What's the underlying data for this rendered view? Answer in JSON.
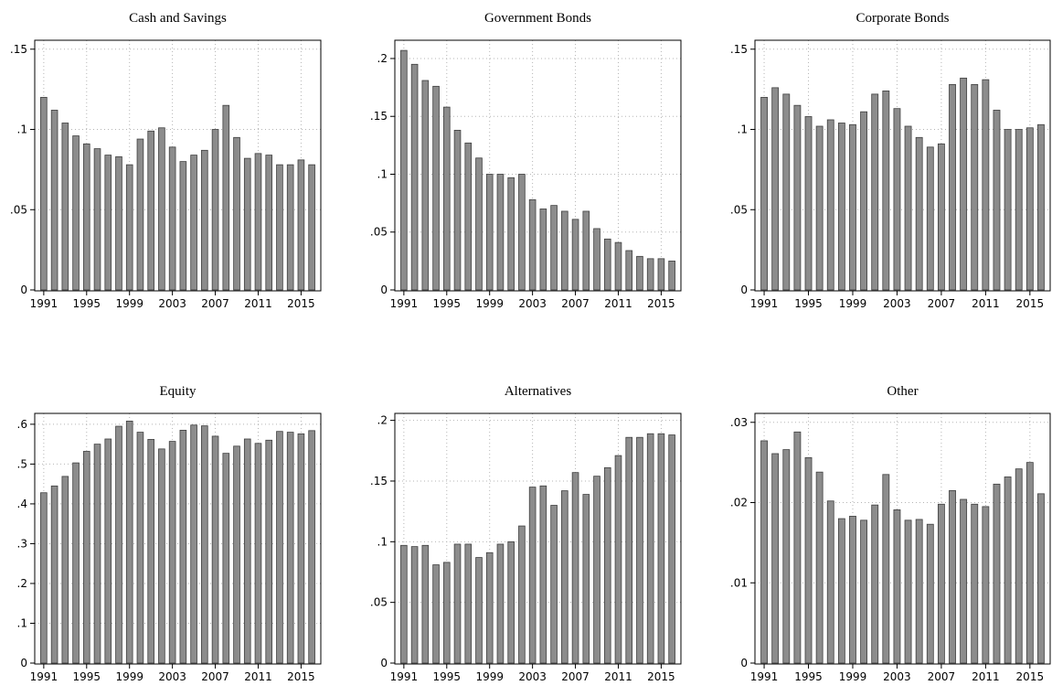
{
  "chart_data": [
    {
      "type": "bar",
      "title": "Cash and Savings",
      "x": [
        1991,
        1992,
        1993,
        1994,
        1995,
        1996,
        1997,
        1998,
        1999,
        2000,
        2001,
        2002,
        2003,
        2004,
        2005,
        2006,
        2007,
        2008,
        2009,
        2010,
        2011,
        2012,
        2013,
        2014,
        2015,
        2016
      ],
      "values": [
        0.12,
        0.112,
        0.104,
        0.096,
        0.091,
        0.088,
        0.084,
        0.083,
        0.078,
        0.094,
        0.099,
        0.101,
        0.089,
        0.08,
        0.084,
        0.087,
        0.1,
        0.115,
        0.095,
        0.082,
        0.085,
        0.084,
        0.078,
        0.078,
        0.081,
        0.078
      ],
      "ylim": [
        0,
        0.155
      ],
      "yticks": [
        0,
        0.05,
        0.1,
        0.15
      ],
      "ytick_labels": [
        "0",
        ".05",
        ".1",
        ".15"
      ],
      "xticks": [
        1991,
        1995,
        1999,
        2003,
        2007,
        2011,
        2015
      ],
      "xtick_labels": [
        "1991",
        "1995",
        "1999",
        "2003",
        "2007",
        "2011",
        "2015"
      ],
      "grid": true
    },
    {
      "type": "bar",
      "title": "Government Bonds",
      "x": [
        1991,
        1992,
        1993,
        1994,
        1995,
        1996,
        1997,
        1998,
        1999,
        2000,
        2001,
        2002,
        2003,
        2004,
        2005,
        2006,
        2007,
        2008,
        2009,
        2010,
        2011,
        2012,
        2013,
        2014,
        2015,
        2016
      ],
      "values": [
        0.207,
        0.195,
        0.181,
        0.176,
        0.158,
        0.138,
        0.127,
        0.114,
        0.1,
        0.1,
        0.097,
        0.1,
        0.078,
        0.07,
        0.073,
        0.068,
        0.061,
        0.068,
        0.053,
        0.044,
        0.041,
        0.034,
        0.029,
        0.027,
        0.027,
        0.025
      ],
      "ylim": [
        0,
        0.215
      ],
      "yticks": [
        0,
        0.05,
        0.1,
        0.15,
        0.2
      ],
      "ytick_labels": [
        "0",
        ".05",
        ".1",
        ".15",
        ".2"
      ],
      "xticks": [
        1991,
        1995,
        1999,
        2003,
        2007,
        2011,
        2015
      ],
      "xtick_labels": [
        "1991",
        "1995",
        "1999",
        "2003",
        "2007",
        "2011",
        "2015"
      ],
      "grid": true
    },
    {
      "type": "bar",
      "title": "Corporate Bonds",
      "x": [
        1991,
        1992,
        1993,
        1994,
        1995,
        1996,
        1997,
        1998,
        1999,
        2000,
        2001,
        2002,
        2003,
        2004,
        2005,
        2006,
        2007,
        2008,
        2009,
        2010,
        2011,
        2012,
        2013,
        2014,
        2015,
        2016
      ],
      "values": [
        0.12,
        0.126,
        0.122,
        0.115,
        0.108,
        0.102,
        0.106,
        0.104,
        0.103,
        0.111,
        0.122,
        0.124,
        0.113,
        0.102,
        0.095,
        0.089,
        0.091,
        0.128,
        0.132,
        0.128,
        0.131,
        0.112,
        0.1,
        0.1,
        0.101,
        0.103
      ],
      "ylim": [
        0,
        0.155
      ],
      "yticks": [
        0,
        0.05,
        0.1,
        0.15
      ],
      "ytick_labels": [
        "0",
        ".05",
        ".1",
        ".15"
      ],
      "xticks": [
        1991,
        1995,
        1999,
        2003,
        2007,
        2011,
        2015
      ],
      "xtick_labels": [
        "1991",
        "1995",
        "1999",
        "2003",
        "2007",
        "2011",
        "2015"
      ],
      "grid": true
    },
    {
      "type": "bar",
      "title": "Equity",
      "x": [
        1991,
        1992,
        1993,
        1994,
        1995,
        1996,
        1997,
        1998,
        1999,
        2000,
        2001,
        2002,
        2003,
        2004,
        2005,
        2006,
        2007,
        2008,
        2009,
        2010,
        2011,
        2012,
        2013,
        2014,
        2015,
        2016
      ],
      "values": [
        0.428,
        0.445,
        0.469,
        0.503,
        0.532,
        0.55,
        0.563,
        0.595,
        0.608,
        0.58,
        0.562,
        0.538,
        0.557,
        0.585,
        0.598,
        0.596,
        0.57,
        0.527,
        0.545,
        0.563,
        0.552,
        0.56,
        0.582,
        0.58,
        0.576,
        0.584
      ],
      "ylim": [
        0,
        0.625
      ],
      "yticks": [
        0,
        0.1,
        0.2,
        0.3,
        0.4,
        0.5,
        0.6
      ],
      "ytick_labels": [
        "0",
        ".1",
        ".2",
        ".3",
        ".4",
        ".5",
        ".6"
      ],
      "xticks": [
        1991,
        1995,
        1999,
        2003,
        2007,
        2011,
        2015
      ],
      "xtick_labels": [
        "1991",
        "1995",
        "1999",
        "2003",
        "2007",
        "2011",
        "2015"
      ],
      "grid": true
    },
    {
      "type": "bar",
      "title": "Alternatives",
      "x": [
        1991,
        1992,
        1993,
        1994,
        1995,
        1996,
        1997,
        1998,
        1999,
        2000,
        2001,
        2002,
        2003,
        2004,
        2005,
        2006,
        2007,
        2008,
        2009,
        2010,
        2011,
        2012,
        2013,
        2014,
        2015,
        2016
      ],
      "values": [
        0.097,
        0.096,
        0.097,
        0.081,
        0.083,
        0.098,
        0.098,
        0.087,
        0.091,
        0.098,
        0.1,
        0.113,
        0.145,
        0.146,
        0.13,
        0.142,
        0.157,
        0.139,
        0.154,
        0.161,
        0.171,
        0.186,
        0.186,
        0.189,
        0.189,
        0.188
      ],
      "ylim": [
        0,
        0.205
      ],
      "yticks": [
        0,
        0.05,
        0.1,
        0.15,
        0.2
      ],
      "ytick_labels": [
        "0",
        ".05",
        ".1",
        ".15",
        ".2"
      ],
      "xticks": [
        1991,
        1995,
        1999,
        2003,
        2007,
        2011,
        2015
      ],
      "xtick_labels": [
        "1991",
        "1995",
        "1999",
        "2003",
        "2007",
        "2011",
        "2015"
      ],
      "grid": true
    },
    {
      "type": "bar",
      "title": "Other",
      "x": [
        1991,
        1992,
        1993,
        1994,
        1995,
        1996,
        1997,
        1998,
        1999,
        2000,
        2001,
        2002,
        2003,
        2004,
        2005,
        2006,
        2007,
        2008,
        2009,
        2010,
        2011,
        2012,
        2013,
        2014,
        2015,
        2016
      ],
      "values": [
        0.0277,
        0.0261,
        0.0266,
        0.0288,
        0.0256,
        0.0238,
        0.0202,
        0.018,
        0.0183,
        0.0178,
        0.0197,
        0.0235,
        0.0191,
        0.0178,
        0.0179,
        0.0173,
        0.0198,
        0.0215,
        0.0204,
        0.0198,
        0.0195,
        0.0223,
        0.0232,
        0.0242,
        0.025,
        0.0211
      ],
      "ylim": [
        0,
        0.031
      ],
      "yticks": [
        0,
        0.01,
        0.02,
        0.03
      ],
      "ytick_labels": [
        "0",
        ".01",
        ".02",
        ".03"
      ],
      "xticks": [
        1991,
        1995,
        1999,
        2003,
        2007,
        2011,
        2015
      ],
      "xtick_labels": [
        "1991",
        "1995",
        "1999",
        "2003",
        "2007",
        "2011",
        "2015"
      ],
      "grid": true
    }
  ]
}
